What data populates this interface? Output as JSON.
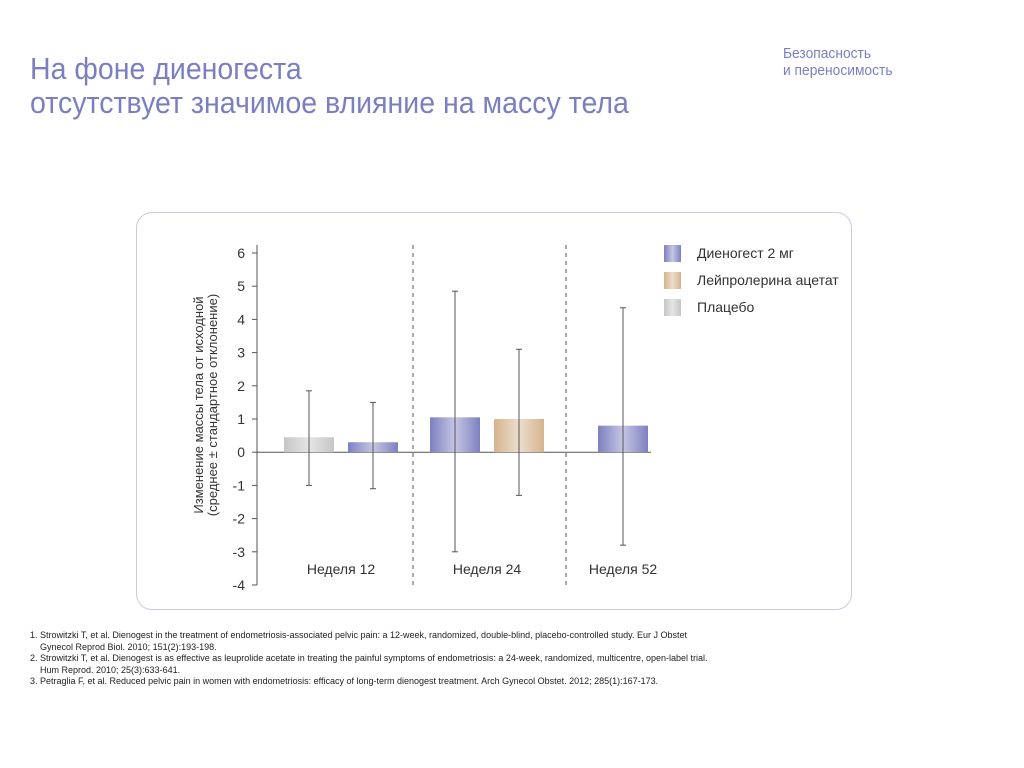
{
  "header": {
    "title_line1": "На фоне диеногеста",
    "title_line2": "отсутствует значимое влияние на массу тела",
    "section_line1": "Безопасность",
    "section_line2": "и переносимость"
  },
  "chart_data": {
    "type": "bar",
    "ylabel_line1": "Изменение массы тела от исходной",
    "ylabel_line2": "(среднее ± стандартное отклонение)",
    "ylim": [
      -4,
      6
    ],
    "yticks": [
      "6",
      "5",
      "4",
      "3",
      "2",
      "1",
      "0",
      "-1",
      "-2",
      "-3",
      "-4"
    ],
    "grid": false,
    "legend_position": "top-right",
    "series": [
      {
        "name": "Диеногест 2 мг",
        "color": "#7d80c0"
      },
      {
        "name": "Лейпролерина ацетат",
        "color": "#d5b48e"
      },
      {
        "name": "Плацебо",
        "color": "#c6c6c6"
      }
    ],
    "groups": [
      {
        "label": "Неделя 12",
        "bars": [
          {
            "series": "Плацебо",
            "value": 0.45,
            "sd_high": 1.85,
            "sd_low": -1.0
          },
          {
            "series": "Диеногест 2 мг",
            "value": 0.3,
            "sd_high": 1.5,
            "sd_low": -1.1
          }
        ]
      },
      {
        "label": "Неделя 24",
        "bars": [
          {
            "series": "Диеногест 2 мг",
            "value": 1.05,
            "sd_high": 4.85,
            "sd_low": -3.0
          },
          {
            "series": "Лейпролерина ацетат",
            "value": 1.0,
            "sd_high": 3.1,
            "sd_low": -1.3
          }
        ]
      },
      {
        "label": "Неделя 52",
        "bars": [
          {
            "series": "Диеногест 2 мг",
            "value": 0.8,
            "sd_high": 4.35,
            "sd_low": -2.8
          }
        ]
      }
    ]
  },
  "references": [
    {
      "line1": "1. Strowitzki T, et al. Dienogest in the treatment of endometriosis-associated pelvic pain: a 12-week, randomized, double-blind, placebo-controlled study. Eur J Obstet",
      "line2": "Gynecol Reprod Biol. 2010; 151(2):193-198."
    },
    {
      "line1": "2. Strowitzki T, et al. Dienogest is as effective as leuprolide acetate in treating the painful symptoms of endometriosis: a 24-week, randomized, multicentre, open-label trial.",
      "line2": "Hum Reprod. 2010; 25(3):633-641."
    },
    {
      "line1": "3. Petraglia F, et al. Reduced pelvic pain in women with endometriosis: efficacy of long-term dienogest treatment. Arch Gynecol Obstet. 2012; 285(1):167-173.",
      "line2": ""
    }
  ]
}
